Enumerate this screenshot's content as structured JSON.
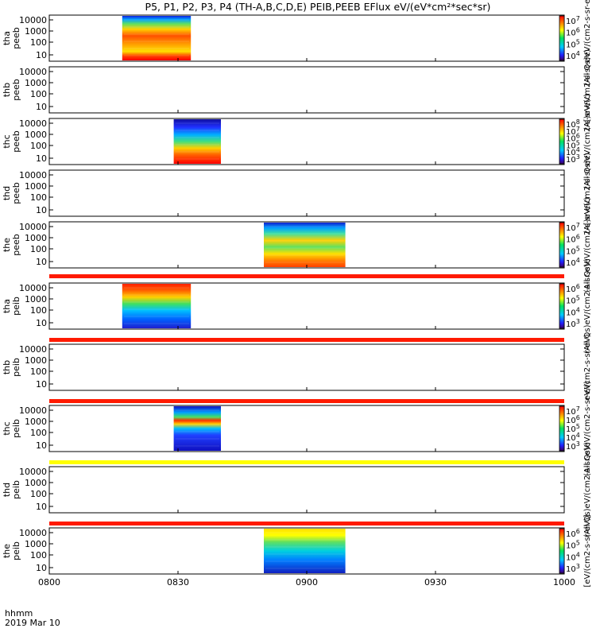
{
  "title": "P5, P1, P2, P3, P4 (TH-A,B,C,D,E) PEIB,PEEB EFlux eV/(eV*cm²*sec*sr)",
  "time_axis": {
    "ticks": [
      "0800",
      "0830",
      "0900",
      "0930",
      "1000"
    ],
    "label1": "hhmm",
    "label2": "2019 Mar 10"
  },
  "colors": {
    "strip_red": "#ff1a00",
    "strip_yellow": "#ffff00",
    "frame": "#000000"
  },
  "chart_data": [
    {
      "type": "heatmap",
      "probe": "tha",
      "species": "peeb",
      "ylabel": [
        "tha",
        "peeb"
      ],
      "x": [
        "08:17",
        "08:33"
      ],
      "y_ticks": [
        "10000",
        "1000",
        "100",
        "10"
      ],
      "colorbar": {
        "ticks": [
          "10⁷",
          "10⁶",
          "10⁵",
          "10⁴"
        ],
        "label": "(All Qs)eV/(cm2-s-sr-eV)"
      }
    },
    {
      "type": "heatmap",
      "probe": "thb",
      "species": "peeb",
      "ylabel": [
        "thb",
        "peeb"
      ],
      "x": [],
      "y_ticks": [
        "10000",
        "1000",
        "100",
        "10"
      ],
      "colorbar": {
        "ticks": [],
        "label": "(A[)eV/(cm2-s-sr-eV)"
      }
    },
    {
      "type": "heatmap",
      "probe": "thc",
      "species": "peeb",
      "ylabel": [
        "thc",
        "peeb"
      ],
      "x": [
        "08:29",
        "08:40"
      ],
      "y_ticks": [
        "10000",
        "1000",
        "100",
        "10"
      ],
      "colorbar": {
        "ticks": [
          "10⁸",
          "10⁷",
          "10⁶",
          "10⁵",
          "10⁴",
          "10³"
        ],
        "label": "(All Qs)eV/(cm2-s-sr-eV)"
      }
    },
    {
      "type": "heatmap",
      "probe": "thd",
      "species": "peeb",
      "ylabel": [
        "thd",
        "peeb"
      ],
      "x": [],
      "y_ticks": [
        "10000",
        "1000",
        "100",
        "10"
      ],
      "colorbar": {
        "ticks": [],
        "label": "(A[)eV/(cm2-s-sr-eV)"
      }
    },
    {
      "type": "heatmap",
      "probe": "the",
      "species": "peeb",
      "ylabel": [
        "the",
        "peeb"
      ],
      "x": [
        "08:50",
        "09:09"
      ],
      "y_ticks": [
        "10000",
        "1000",
        "100",
        "10"
      ],
      "colorbar": {
        "ticks": [
          "10⁷",
          "10⁶",
          "10⁵",
          "10⁴"
        ],
        "label": "(All Qs)eV/(cm2-s-sr-eV)"
      }
    },
    {
      "type": "heatmap",
      "probe": "tha",
      "species": "peib",
      "ylabel": [
        "tha",
        "peib"
      ],
      "x": [
        "08:17",
        "08:33"
      ],
      "y_ticks": [
        "10000",
        "1000",
        "100",
        "10"
      ],
      "colorbar": {
        "ticks": [
          "10⁶",
          "10⁵",
          "10⁴",
          "10³"
        ],
        "label": "(All Qs)eV/(cm2-s-sr-eV)"
      }
    },
    {
      "type": "heatmap",
      "probe": "thb",
      "species": "peib",
      "ylabel": [
        "thb",
        "peib"
      ],
      "x": [],
      "y_ticks": [
        "10000",
        "1000",
        "100",
        "10"
      ],
      "colorbar": {
        "ticks": [],
        "label": "eV/(cm2-s-sr-eV)"
      }
    },
    {
      "type": "heatmap",
      "probe": "thc",
      "species": "peib",
      "ylabel": [
        "thc",
        "peib"
      ],
      "x": [
        "08:29",
        "08:40"
      ],
      "y_ticks": [
        "10000",
        "1000",
        "100",
        "10"
      ],
      "colorbar": {
        "ticks": [
          "10⁷",
          "10⁶",
          "10⁵",
          "10⁴",
          "10³"
        ],
        "label": "(All Qs)eV/(cm2-s-sr-eV)"
      }
    },
    {
      "type": "heatmap",
      "probe": "thd",
      "species": "peib",
      "ylabel": [
        "thd",
        "peib"
      ],
      "x": [],
      "y_ticks": [
        "10000",
        "1000",
        "100",
        "10"
      ],
      "colorbar": {
        "ticks": [],
        "label": "(All Qs)eV/(cm2-s-sr-eV)"
      }
    },
    {
      "type": "heatmap",
      "probe": "the",
      "species": "peib",
      "ylabel": [
        "the",
        "peib"
      ],
      "x": [
        "08:50",
        "09:09"
      ],
      "y_ticks": [
        "10000",
        "1000",
        "100",
        "10"
      ],
      "colorbar": {
        "ticks": [
          "10⁶",
          "10⁵",
          "10⁴",
          "10³"
        ],
        "label": "[eV/(cm2-s-sr-eV)]"
      }
    }
  ]
}
